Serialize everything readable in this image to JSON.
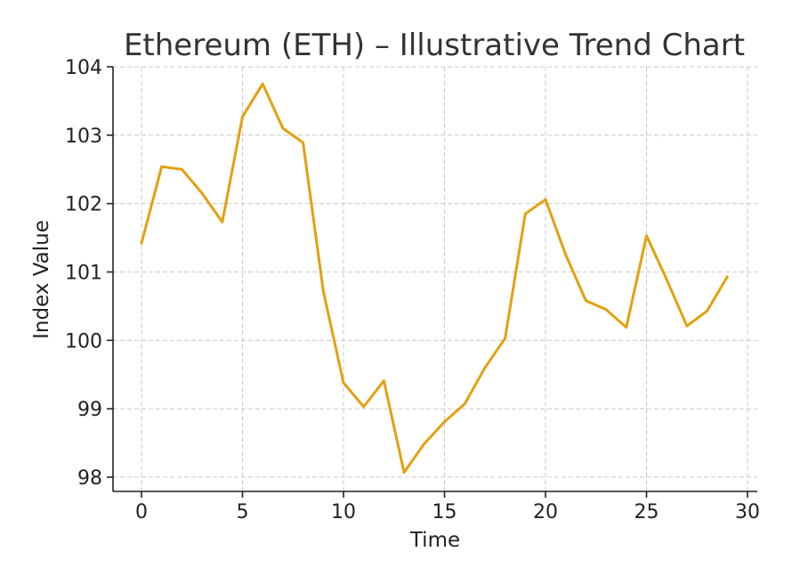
{
  "chart_data": {
    "type": "line",
    "title": "Ethereum (ETH) – Illustrative Trend Chart",
    "xlabel": "Time",
    "ylabel": "Index Value",
    "xlim": [
      -1.5,
      30.5
    ],
    "ylim": [
      97.8,
      104.0
    ],
    "xticks": [
      0,
      5,
      10,
      15,
      20,
      25,
      30
    ],
    "yticks": [
      98,
      99,
      100,
      101,
      102,
      103,
      104
    ],
    "grid": true,
    "line_color": "#e3a010",
    "x": [
      0,
      1,
      2,
      3,
      4,
      5,
      6,
      7,
      8,
      9,
      10,
      11,
      12,
      13,
      14,
      15,
      16,
      17,
      18,
      19,
      20,
      21,
      22,
      23,
      24,
      25,
      26,
      27,
      28,
      29
    ],
    "series": [
      {
        "values": [
          101.42,
          102.54,
          102.5,
          102.15,
          101.73,
          103.27,
          103.75,
          103.1,
          102.89,
          100.72,
          99.38,
          99.03,
          99.41,
          98.07,
          98.49,
          98.81,
          99.07,
          99.6,
          100.03,
          101.85,
          102.06,
          101.25,
          100.58,
          100.45,
          100.19,
          101.53,
          100.89,
          100.21,
          100.43,
          100.93
        ]
      }
    ]
  }
}
